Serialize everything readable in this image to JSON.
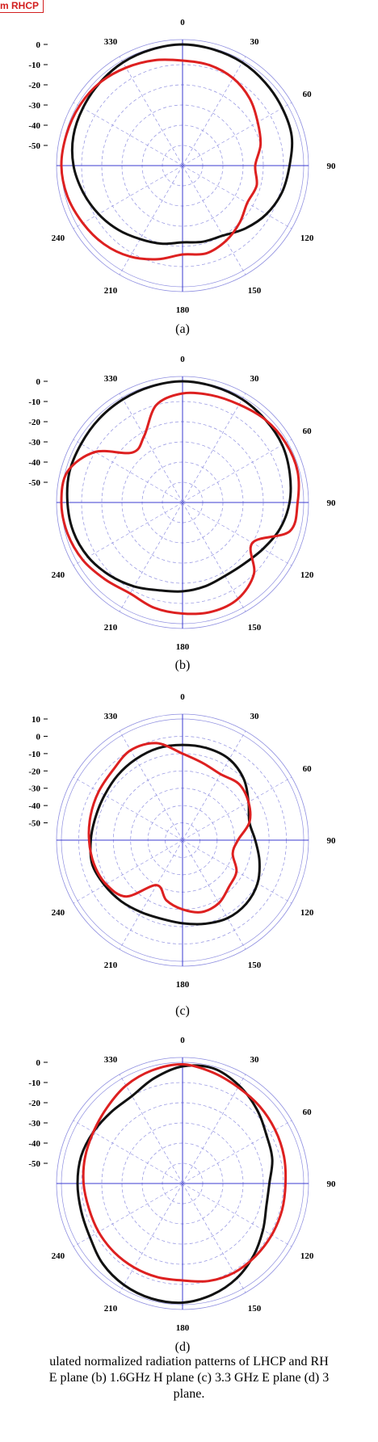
{
  "legend": {
    "text": "m RHCP",
    "color": "#d21f1f"
  },
  "caption": {
    "line1": "ulated normalized radiation patterns of LHCP and RH",
    "line2": "E plane (b) 1.6GHz H plane (c) 3.3 GHz E plane (d) 3",
    "line3": "plane."
  },
  "colors": {
    "lhcp": "#111111",
    "rhcp": "#dd2020",
    "grid": "#8f8fe0",
    "axis": "#3b3bd0"
  },
  "chart_data": [
    {
      "type": "polar",
      "panel_label": "(a)",
      "angle_ticks": [
        0,
        30,
        60,
        90,
        120,
        150,
        180,
        210,
        240,
        330
      ],
      "radial_ticks": [
        0,
        -10,
        -20,
        -30,
        -40,
        -50
      ],
      "rlim": [
        -60,
        0
      ],
      "series": [
        {
          "color": "black",
          "theta": [
            0,
            15,
            30,
            45,
            60,
            75,
            90,
            105,
            120,
            135,
            150,
            165,
            180,
            195,
            210,
            225,
            240,
            255,
            270,
            285,
            300,
            315,
            330,
            345
          ],
          "r": [
            0,
            -0.5,
            -1,
            -2,
            -3,
            -4,
            -7,
            -9,
            -12,
            -16,
            -20,
            -21,
            -22,
            -20,
            -18,
            -15,
            -12,
            -9,
            -6,
            -4,
            -3,
            -2,
            -1,
            -0.5
          ]
        },
        {
          "color": "red",
          "theta": [
            0,
            15,
            30,
            45,
            60,
            75,
            90,
            105,
            120,
            135,
            150,
            165,
            180,
            195,
            210,
            225,
            240,
            255,
            270,
            285,
            300,
            315,
            330,
            345
          ],
          "r": [
            -8,
            -8.5,
            -10,
            -13,
            -17,
            -20,
            -24,
            -22,
            -23,
            -20,
            -17,
            -15,
            -16,
            -12,
            -8,
            -5,
            -3,
            -1,
            0,
            -0.5,
            -1,
            -2,
            -4,
            -6
          ]
        }
      ]
    },
    {
      "type": "polar",
      "panel_label": "(b)",
      "angle_ticks": [
        0,
        30,
        60,
        90,
        120,
        150,
        180,
        210,
        240,
        330
      ],
      "radial_ticks": [
        0,
        -10,
        -20,
        -30,
        -40,
        -50
      ],
      "rlim": [
        -60,
        0
      ],
      "series": [
        {
          "color": "black",
          "theta": [
            0,
            15,
            30,
            45,
            60,
            75,
            90,
            105,
            120,
            135,
            150,
            165,
            180,
            195,
            210,
            225,
            240,
            255,
            270,
            285,
            300,
            315,
            330,
            345
          ],
          "r": [
            0,
            -0.5,
            -1,
            -2,
            -3,
            -5,
            -7,
            -10,
            -14,
            -17,
            -18,
            -17,
            -16,
            -15,
            -12,
            -9,
            -6,
            -4,
            -3,
            -2,
            -2,
            -1.5,
            -1,
            -0.5
          ]
        },
        {
          "color": "red",
          "theta": [
            0,
            15,
            30,
            45,
            60,
            75,
            90,
            105,
            120,
            135,
            150,
            165,
            180,
            195,
            210,
            225,
            240,
            255,
            270,
            285,
            300,
            315,
            330,
            345
          ],
          "r": [
            -6,
            -5,
            -4,
            -2,
            -1,
            -1,
            -3,
            -5,
            -20,
            -10,
            -5,
            -4,
            -5,
            -6,
            -8,
            -6,
            -3,
            -1,
            0,
            -1,
            -10,
            -25,
            -22,
            -10
          ]
        }
      ]
    },
    {
      "type": "polar",
      "panel_label": "(c)",
      "angle_ticks": [
        0,
        30,
        60,
        90,
        120,
        150,
        180,
        210,
        240,
        330
      ],
      "radial_ticks": [
        10,
        0,
        -10,
        -20,
        -30,
        -40,
        -50
      ],
      "rlim": [
        -60,
        10
      ],
      "series": [
        {
          "color": "black",
          "theta": [
            0,
            15,
            30,
            45,
            60,
            75,
            90,
            105,
            120,
            135,
            150,
            165,
            180,
            195,
            210,
            225,
            240,
            255,
            270,
            285,
            300,
            315,
            330,
            345
          ],
          "r": [
            -5,
            -5,
            -6,
            -10,
            -16,
            -20,
            -18,
            -14,
            -10,
            -8,
            -8,
            -10,
            -12,
            -13,
            -12,
            -10,
            -8,
            -6,
            -7,
            -8,
            -8,
            -7,
            -6,
            -5
          ]
        },
        {
          "color": "red",
          "theta": [
            0,
            15,
            30,
            45,
            60,
            75,
            90,
            105,
            120,
            135,
            150,
            165,
            180,
            195,
            210,
            225,
            240,
            255,
            270,
            285,
            300,
            315,
            330,
            345
          ],
          "r": [
            -10,
            -14,
            -16,
            -14,
            -16,
            -20,
            -28,
            -30,
            -24,
            -22,
            -18,
            -17,
            -20,
            -24,
            -30,
            -14,
            -9,
            -7,
            -6,
            -5,
            -4,
            -3,
            0,
            -2
          ]
        }
      ]
    },
    {
      "type": "polar",
      "panel_label": "(d)",
      "angle_ticks": [
        0,
        30,
        60,
        90,
        120,
        150,
        180,
        210,
        240,
        330
      ],
      "radial_ticks": [
        0,
        -10,
        -20,
        -30,
        -40,
        -50
      ],
      "rlim": [
        -60,
        0
      ],
      "series": [
        {
          "color": "black",
          "theta": [
            0,
            15,
            30,
            45,
            60,
            75,
            90,
            105,
            120,
            135,
            150,
            165,
            180,
            195,
            210,
            225,
            240,
            255,
            270,
            285,
            300,
            315,
            330,
            345
          ],
          "r": [
            -2,
            -1,
            -4,
            -8,
            -12,
            -14,
            -17,
            -17,
            -14,
            -10,
            -6,
            -3,
            -1,
            -1,
            -2,
            -4,
            -7,
            -8,
            -8,
            -8,
            -9,
            -10,
            -10,
            -6
          ]
        },
        {
          "color": "red",
          "theta": [
            0,
            15,
            30,
            45,
            60,
            75,
            90,
            105,
            120,
            135,
            150,
            165,
            180,
            195,
            210,
            225,
            240,
            255,
            270,
            285,
            300,
            315,
            330,
            345
          ],
          "r": [
            -1,
            -3,
            -5,
            -6,
            -7,
            -8,
            -9,
            -9,
            -9,
            -9,
            -9,
            -10,
            -12,
            -12,
            -12,
            -12,
            -12,
            -12,
            -11,
            -10,
            -9,
            -7,
            -4,
            -2
          ]
        }
      ]
    }
  ]
}
